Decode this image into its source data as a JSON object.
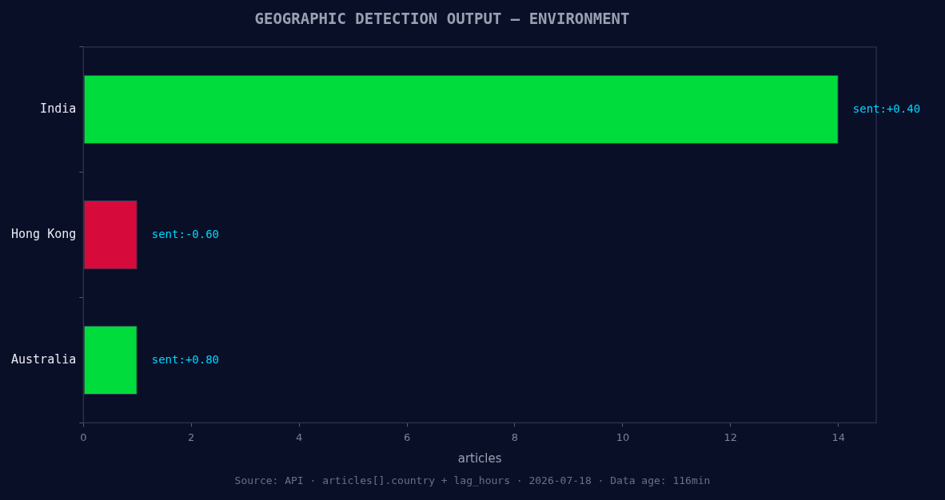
{
  "chart_data": {
    "type": "bar",
    "orientation": "horizontal",
    "title": "GEOGRAPHIC DETECTION OUTPUT — ENVIRONMENT",
    "xlabel": "articles",
    "categories": [
      "India",
      "Hong Kong",
      "Australia"
    ],
    "values": [
      14,
      1,
      1
    ],
    "colors": [
      "#00dc3c",
      "#d70a3c",
      "#00dc3c"
    ],
    "xlim": [
      0,
      14.7
    ],
    "xticks": [
      0,
      2,
      4,
      6,
      8,
      10,
      12,
      14
    ],
    "grid": false,
    "legend": false,
    "annotations": [
      "sent:+0.40",
      "sent:-0.60",
      "sent:+0.80",
      "Source: API · articles[].country + lag_hours · 2026-07-18 · Data age: 116min"
    ]
  }
}
